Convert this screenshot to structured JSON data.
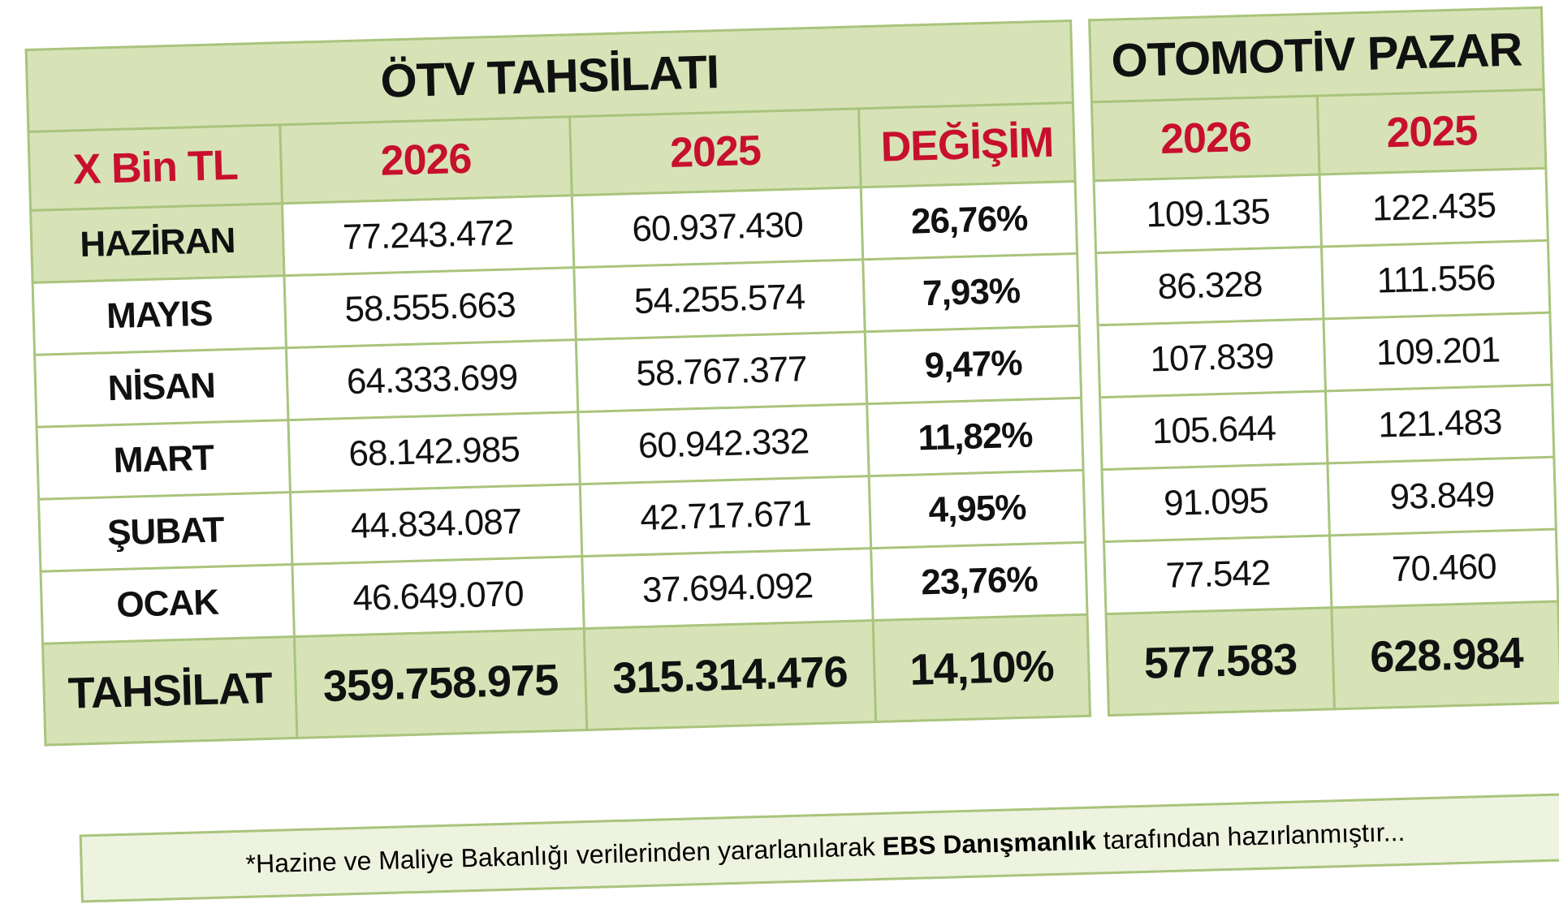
{
  "otv_table": {
    "title": "ÖTV TAHSİLATI",
    "unit": "X Bin TL",
    "headers": [
      "2026",
      "2025",
      "DEĞİŞİM"
    ],
    "rows": [
      [
        "HAZİRAN",
        "77.243.472",
        "60.937.430",
        "26,76%"
      ],
      [
        "MAYIS",
        "58.555.663",
        "54.255.574",
        "7,93%"
      ],
      [
        "NİSAN",
        "64.333.699",
        "58.767.377",
        "9,47%"
      ],
      [
        "MART",
        "68.142.985",
        "60.942.332",
        "11,82%"
      ],
      [
        "ŞUBAT",
        "44.834.087",
        "42.717.671",
        "4,95%"
      ],
      [
        "OCAK",
        "46.649.070",
        "37.694.092",
        "23,76%"
      ]
    ],
    "total": [
      "TAHSİLAT",
      "359.758.975",
      "315.314.476",
      "14,10%"
    ]
  },
  "market_table": {
    "title": "OTOMOTİV PAZAR",
    "headers": [
      "2026",
      "2025"
    ],
    "rows": [
      [
        "109.135",
        "122.435"
      ],
      [
        "86.328",
        "111.556"
      ],
      [
        "107.839",
        "109.201"
      ],
      [
        "105.644",
        "121.483"
      ],
      [
        "91.095",
        "93.849"
      ],
      [
        "77.542",
        "70.460"
      ]
    ],
    "total": [
      "577.583",
      "628.984"
    ]
  },
  "footnote": {
    "before": "*Hazine ve Maliye Bakanlığı verilerinden yararlanılarak ",
    "bold": "EBS Danışmanlık",
    "after": " tarafından hazırlanmıştır..."
  }
}
